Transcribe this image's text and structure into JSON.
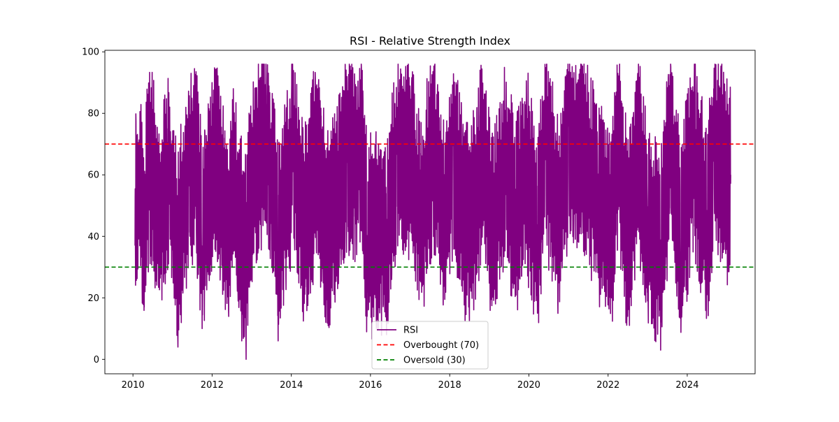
{
  "chart_data": {
    "type": "line",
    "title": "RSI - Relative Strength Index",
    "xlabel": "",
    "ylabel": "",
    "x_range": [
      "2010-01-20",
      "2025-02-05"
    ],
    "xlim": [
      "2009-04-17",
      "2025-09-18"
    ],
    "ylim": [
      -4.7,
      100.5
    ],
    "x_ticks": [
      "2010",
      "2012",
      "2014",
      "2016",
      "2018",
      "2020",
      "2022",
      "2024"
    ],
    "y_ticks": [
      0,
      20,
      40,
      60,
      80,
      100
    ],
    "grid": false,
    "legend_position": "lower center",
    "series": [
      {
        "name": "RSI",
        "color": "#800080",
        "style": "solid",
        "approx_points": [
          [
            "2010-01-20",
            37
          ],
          [
            "2010-03-01",
            66
          ],
          [
            "2010-04-15",
            17
          ],
          [
            "2010-06-01",
            80
          ],
          [
            "2010-09-01",
            33
          ],
          [
            "2010-12-01",
            68
          ],
          [
            "2011-02-20",
            4
          ],
          [
            "2011-06-01",
            70
          ],
          [
            "2011-08-01",
            86
          ],
          [
            "2011-10-01",
            10
          ],
          [
            "2012-02-01",
            94
          ],
          [
            "2012-06-01",
            16
          ],
          [
            "2012-07-01",
            72
          ],
          [
            "2012-10-01",
            6
          ],
          [
            "2012-11-10",
            0
          ],
          [
            "2013-02-01",
            83
          ],
          [
            "2013-06-01",
            93
          ],
          [
            "2013-09-01",
            6
          ],
          [
            "2014-01-15",
            94
          ],
          [
            "2014-05-01",
            19
          ],
          [
            "2014-09-01",
            88
          ],
          [
            "2014-11-15",
            12
          ],
          [
            "2015-06-01",
            80
          ],
          [
            "2015-10-15",
            93
          ],
          [
            "2015-12-01",
            14
          ],
          [
            "2016-06-01",
            14
          ],
          [
            "2016-09-01",
            82
          ],
          [
            "2017-01-15",
            90
          ],
          [
            "2017-04-01",
            26
          ],
          [
            "2017-08-01",
            91
          ],
          [
            "2017-11-15",
            29
          ],
          [
            "2018-02-01",
            83
          ],
          [
            "2018-07-01",
            14
          ],
          [
            "2018-11-01",
            88
          ],
          [
            "2019-02-01",
            22
          ],
          [
            "2019-06-01",
            81
          ],
          [
            "2019-09-01",
            25
          ],
          [
            "2019-12-01",
            80
          ],
          [
            "2020-03-20",
            15
          ],
          [
            "2020-06-01",
            92
          ],
          [
            "2020-10-01",
            29
          ],
          [
            "2021-01-01",
            92
          ],
          [
            "2021-06-01",
            88
          ],
          [
            "2021-10-01",
            42
          ],
          [
            "2022-02-01",
            20
          ],
          [
            "2022-04-01",
            93
          ],
          [
            "2022-07-01",
            14
          ],
          [
            "2022-10-01",
            93
          ],
          [
            "2023-01-01",
            19
          ],
          [
            "2023-05-01",
            3
          ],
          [
            "2023-08-01",
            96
          ],
          [
            "2023-11-01",
            14
          ],
          [
            "2024-03-01",
            86
          ],
          [
            "2024-07-01",
            21
          ],
          [
            "2024-09-01",
            88
          ],
          [
            "2025-02-05",
            60
          ]
        ]
      },
      {
        "name": "Overbought (70)",
        "color": "#ff0000",
        "style": "dashed",
        "value": 70
      },
      {
        "name": "Oversold (30)",
        "color": "#008000",
        "style": "dashed",
        "value": 30
      }
    ]
  }
}
